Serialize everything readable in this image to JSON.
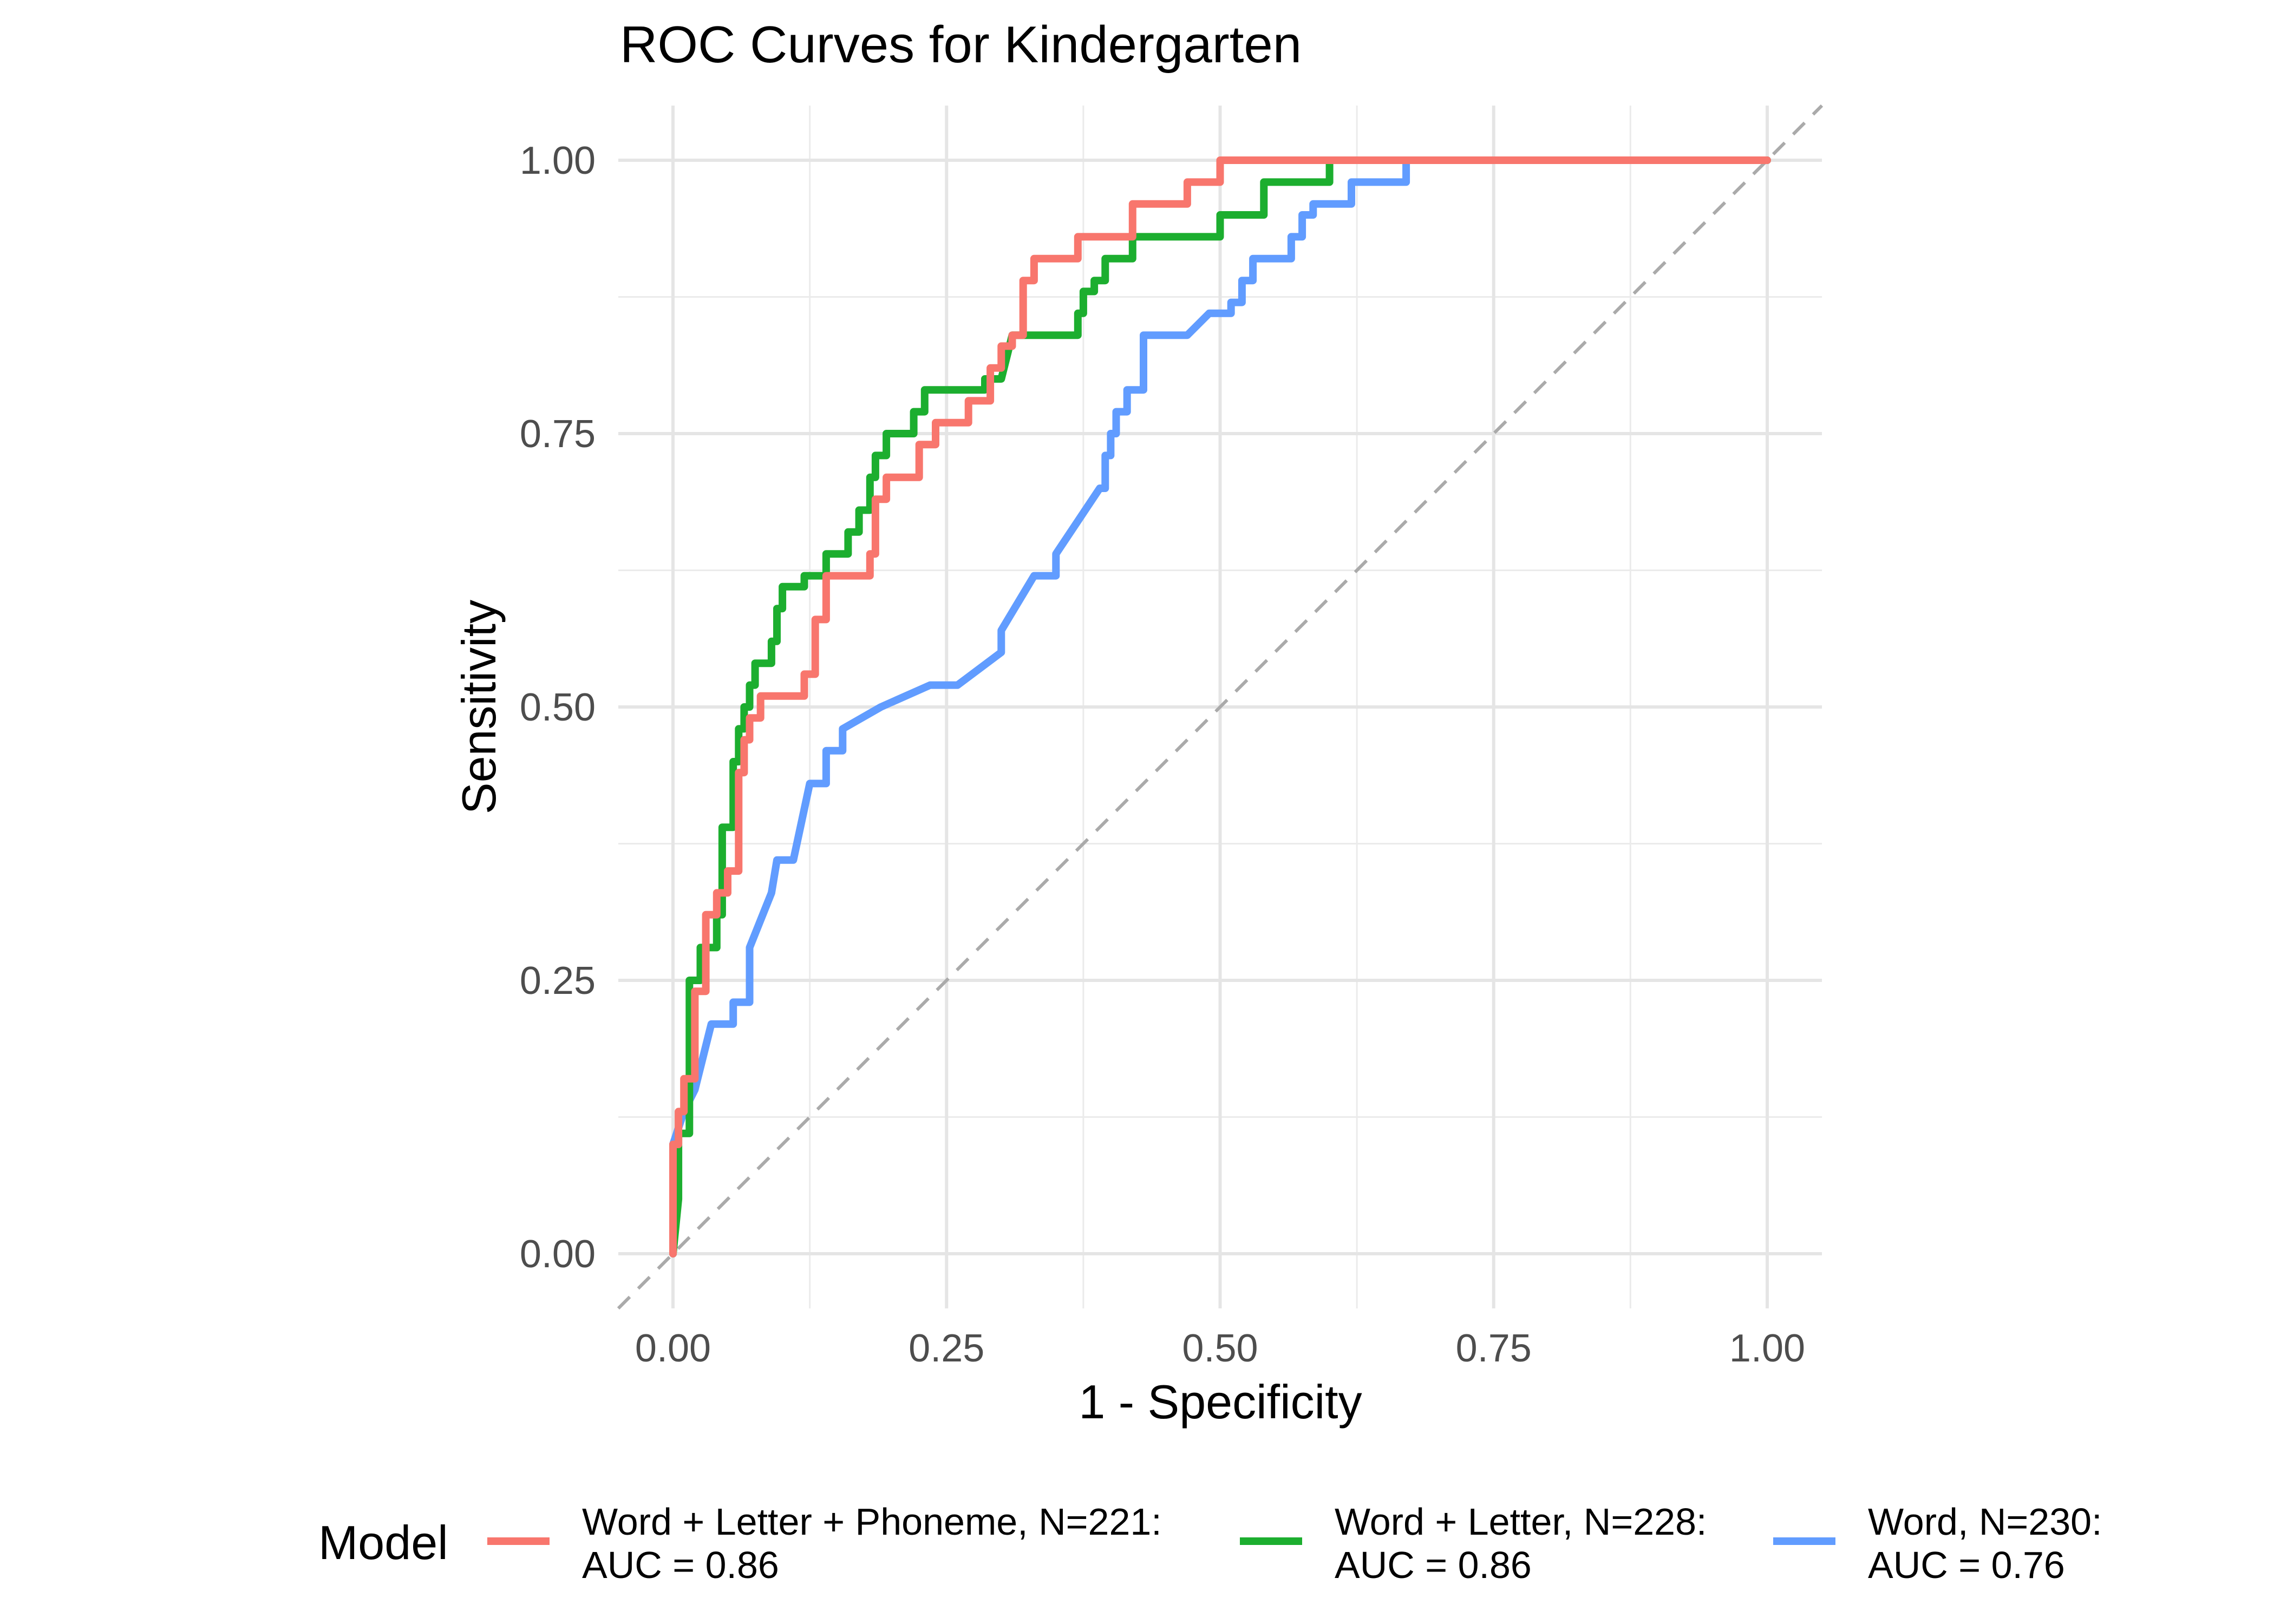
{
  "chart_data": {
    "type": "line",
    "title": "ROC Curves for Kindergarten",
    "xlabel": "1 - Specificity",
    "ylabel": "Sensitivity",
    "xlim": [
      -0.05,
      1.05
    ],
    "ylim": [
      -0.05,
      1.05
    ],
    "xticks": [
      0,
      0.25,
      0.5,
      0.75,
      1
    ],
    "xtick_labels": [
      "0.00",
      "0.25",
      "0.50",
      "0.75",
      "1.00"
    ],
    "yticks": [
      0,
      0.25,
      0.5,
      0.75,
      1
    ],
    "ytick_labels": [
      "0.00",
      "0.25",
      "0.50",
      "0.75",
      "1.00"
    ],
    "grid": true,
    "legend": {
      "title": "Model",
      "position": "bottom"
    },
    "reference_line": {
      "type": "diagonal",
      "style": "dashed",
      "color": "#aaaaaa"
    },
    "series": [
      {
        "name": "Word + Letter + Phoneme, N=221:",
        "auc_label": " AUC = 0.86",
        "color": "#F8766D",
        "points": [
          [
            0,
            0
          ],
          [
            0,
            0.1
          ],
          [
            0.005,
            0.1
          ],
          [
            0.005,
            0.13
          ],
          [
            0.01,
            0.13
          ],
          [
            0.01,
            0.16
          ],
          [
            0.02,
            0.16
          ],
          [
            0.02,
            0.24
          ],
          [
            0.03,
            0.24
          ],
          [
            0.03,
            0.27
          ],
          [
            0.03,
            0.31
          ],
          [
            0.04,
            0.31
          ],
          [
            0.04,
            0.33
          ],
          [
            0.05,
            0.33
          ],
          [
            0.05,
            0.35
          ],
          [
            0.06,
            0.35
          ],
          [
            0.06,
            0.44
          ],
          [
            0.065,
            0.44
          ],
          [
            0.065,
            0.47
          ],
          [
            0.07,
            0.47
          ],
          [
            0.07,
            0.49
          ],
          [
            0.08,
            0.49
          ],
          [
            0.08,
            0.51
          ],
          [
            0.12,
            0.51
          ],
          [
            0.12,
            0.53
          ],
          [
            0.13,
            0.53
          ],
          [
            0.13,
            0.58
          ],
          [
            0.14,
            0.58
          ],
          [
            0.14,
            0.62
          ],
          [
            0.18,
            0.62
          ],
          [
            0.18,
            0.64
          ],
          [
            0.185,
            0.64
          ],
          [
            0.185,
            0.69
          ],
          [
            0.195,
            0.69
          ],
          [
            0.195,
            0.71
          ],
          [
            0.225,
            0.71
          ],
          [
            0.225,
            0.74
          ],
          [
            0.24,
            0.74
          ],
          [
            0.24,
            0.76
          ],
          [
            0.27,
            0.76
          ],
          [
            0.27,
            0.78
          ],
          [
            0.29,
            0.78
          ],
          [
            0.29,
            0.81
          ],
          [
            0.3,
            0.81
          ],
          [
            0.3,
            0.83
          ],
          [
            0.31,
            0.83
          ],
          [
            0.31,
            0.84
          ],
          [
            0.32,
            0.84
          ],
          [
            0.32,
            0.89
          ],
          [
            0.33,
            0.89
          ],
          [
            0.33,
            0.91
          ],
          [
            0.37,
            0.91
          ],
          [
            0.37,
            0.93
          ],
          [
            0.42,
            0.93
          ],
          [
            0.42,
            0.96
          ],
          [
            0.47,
            0.96
          ],
          [
            0.47,
            0.98
          ],
          [
            0.5,
            0.98
          ],
          [
            0.5,
            1.0
          ],
          [
            1.0,
            1.0
          ]
        ]
      },
      {
        "name": "Word + Letter, N=228:",
        "auc_label": " AUC = 0.86",
        "color": "#1CAE2F",
        "points": [
          [
            0,
            0
          ],
          [
            0.005,
            0.05
          ],
          [
            0.005,
            0.11
          ],
          [
            0.015,
            0.11
          ],
          [
            0.015,
            0.25
          ],
          [
            0.025,
            0.25
          ],
          [
            0.025,
            0.28
          ],
          [
            0.04,
            0.28
          ],
          [
            0.04,
            0.31
          ],
          [
            0.045,
            0.31
          ],
          [
            0.045,
            0.39
          ],
          [
            0.055,
            0.39
          ],
          [
            0.055,
            0.45
          ],
          [
            0.06,
            0.45
          ],
          [
            0.06,
            0.48
          ],
          [
            0.065,
            0.48
          ],
          [
            0.065,
            0.5
          ],
          [
            0.07,
            0.5
          ],
          [
            0.07,
            0.52
          ],
          [
            0.075,
            0.52
          ],
          [
            0.075,
            0.54
          ],
          [
            0.09,
            0.54
          ],
          [
            0.09,
            0.56
          ],
          [
            0.095,
            0.56
          ],
          [
            0.095,
            0.59
          ],
          [
            0.1,
            0.59
          ],
          [
            0.1,
            0.61
          ],
          [
            0.12,
            0.61
          ],
          [
            0.12,
            0.62
          ],
          [
            0.14,
            0.62
          ],
          [
            0.14,
            0.64
          ],
          [
            0.16,
            0.64
          ],
          [
            0.16,
            0.66
          ],
          [
            0.17,
            0.66
          ],
          [
            0.17,
            0.68
          ],
          [
            0.18,
            0.68
          ],
          [
            0.18,
            0.71
          ],
          [
            0.185,
            0.71
          ],
          [
            0.185,
            0.73
          ],
          [
            0.195,
            0.73
          ],
          [
            0.195,
            0.75
          ],
          [
            0.22,
            0.75
          ],
          [
            0.22,
            0.77
          ],
          [
            0.23,
            0.77
          ],
          [
            0.23,
            0.79
          ],
          [
            0.285,
            0.79
          ],
          [
            0.285,
            0.8
          ],
          [
            0.3,
            0.8
          ],
          [
            0.31,
            0.84
          ],
          [
            0.37,
            0.84
          ],
          [
            0.37,
            0.86
          ],
          [
            0.375,
            0.86
          ],
          [
            0.375,
            0.88
          ],
          [
            0.385,
            0.88
          ],
          [
            0.385,
            0.89
          ],
          [
            0.395,
            0.89
          ],
          [
            0.395,
            0.91
          ],
          [
            0.42,
            0.91
          ],
          [
            0.42,
            0.93
          ],
          [
            0.5,
            0.93
          ],
          [
            0.5,
            0.95
          ],
          [
            0.54,
            0.95
          ],
          [
            0.54,
            0.98
          ],
          [
            0.6,
            0.98
          ],
          [
            0.6,
            1.0
          ],
          [
            1.0,
            1.0
          ]
        ]
      },
      {
        "name": "Word, N=230:",
        "auc_label": " AUC = 0.76",
        "color": "#619CFF",
        "points": [
          [
            0,
            0
          ],
          [
            0,
            0.1
          ],
          [
            0.01,
            0.13
          ],
          [
            0.02,
            0.15
          ],
          [
            0.035,
            0.21
          ],
          [
            0.055,
            0.21
          ],
          [
            0.055,
            0.23
          ],
          [
            0.07,
            0.23
          ],
          [
            0.07,
            0.28
          ],
          [
            0.09,
            0.33
          ],
          [
            0.095,
            0.36
          ],
          [
            0.11,
            0.36
          ],
          [
            0.125,
            0.43
          ],
          [
            0.14,
            0.43
          ],
          [
            0.14,
            0.46
          ],
          [
            0.155,
            0.46
          ],
          [
            0.155,
            0.48
          ],
          [
            0.19,
            0.5
          ],
          [
            0.235,
            0.52
          ],
          [
            0.26,
            0.52
          ],
          [
            0.3,
            0.55
          ],
          [
            0.3,
            0.57
          ],
          [
            0.33,
            0.62
          ],
          [
            0.35,
            0.62
          ],
          [
            0.35,
            0.64
          ],
          [
            0.39,
            0.7
          ],
          [
            0.395,
            0.7
          ],
          [
            0.395,
            0.73
          ],
          [
            0.4,
            0.73
          ],
          [
            0.4,
            0.75
          ],
          [
            0.405,
            0.75
          ],
          [
            0.405,
            0.77
          ],
          [
            0.415,
            0.77
          ],
          [
            0.415,
            0.79
          ],
          [
            0.43,
            0.79
          ],
          [
            0.43,
            0.84
          ],
          [
            0.47,
            0.84
          ],
          [
            0.49,
            0.86
          ],
          [
            0.51,
            0.86
          ],
          [
            0.51,
            0.87
          ],
          [
            0.52,
            0.87
          ],
          [
            0.52,
            0.89
          ],
          [
            0.53,
            0.89
          ],
          [
            0.53,
            0.91
          ],
          [
            0.565,
            0.91
          ],
          [
            0.565,
            0.93
          ],
          [
            0.575,
            0.93
          ],
          [
            0.575,
            0.95
          ],
          [
            0.585,
            0.95
          ],
          [
            0.585,
            0.96
          ],
          [
            0.62,
            0.96
          ],
          [
            0.62,
            0.98
          ],
          [
            0.67,
            0.98
          ],
          [
            0.67,
            1.0
          ],
          [
            1.0,
            1.0
          ]
        ]
      }
    ]
  }
}
